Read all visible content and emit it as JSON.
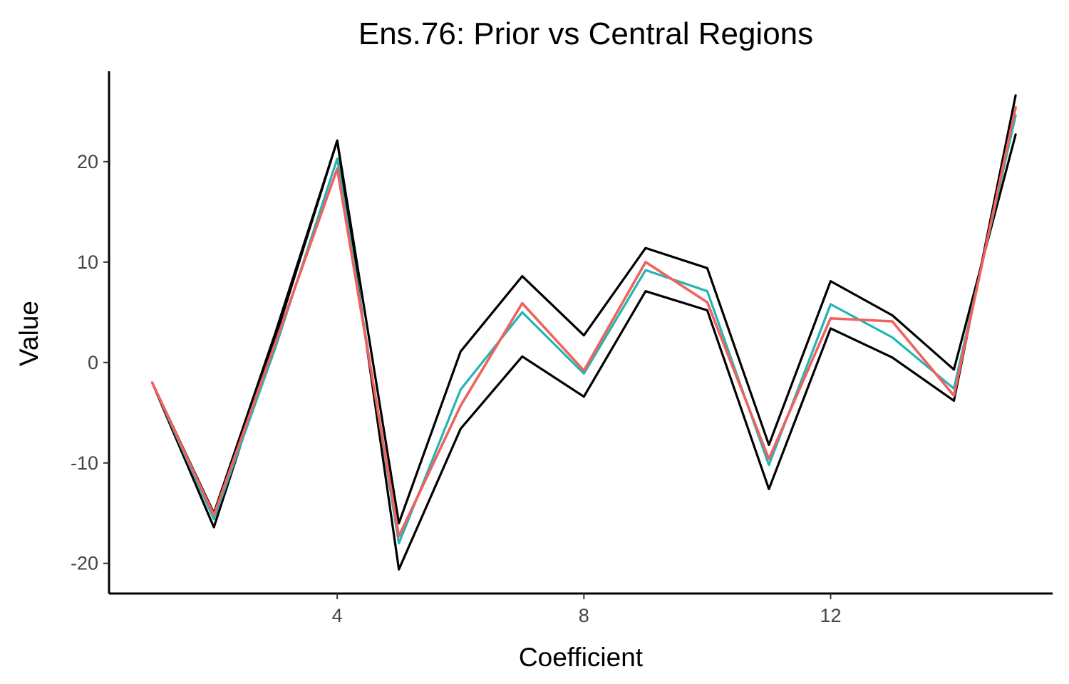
{
  "chart_data": {
    "type": "line",
    "title": "Ens.76: Prior vs Central Regions",
    "xlabel": "Coefficient",
    "ylabel": "Value",
    "x": [
      1,
      2,
      3,
      4,
      5,
      6,
      7,
      8,
      9,
      10,
      11,
      12,
      13,
      14,
      15
    ],
    "xlim": [
      0.3,
      15.6
    ],
    "ylim": [
      -23,
      29
    ],
    "xticks": [
      4,
      8,
      12
    ],
    "yticks": [
      -20,
      -10,
      0,
      10,
      20
    ],
    "grid": false,
    "legend": "none",
    "series": [
      {
        "color": "#000000",
        "values": [
          -2.0,
          -16.4,
          2.5,
          22.1,
          -20.6,
          -6.6,
          0.6,
          -3.4,
          7.1,
          5.2,
          -12.6,
          3.4,
          0.5,
          -3.8,
          26.6
        ]
      },
      {
        "color": "#000000",
        "values": [
          -2.0,
          -15.0,
          3.0,
          22.1,
          -16.0,
          1.1,
          8.6,
          2.7,
          11.4,
          9.4,
          -8.2,
          8.1,
          4.7,
          -0.7,
          22.7
        ]
      },
      {
        "color": "#22B5B5",
        "values": [
          -2.0,
          -15.6,
          1.5,
          20.3,
          -18.0,
          -2.7,
          5.0,
          -1.1,
          9.2,
          7.1,
          -10.2,
          5.8,
          2.5,
          -2.6,
          24.6
        ]
      },
      {
        "color": "#F0625E",
        "values": [
          -2.0,
          -15.2,
          2.0,
          19.3,
          -17.3,
          -4.3,
          5.9,
          -0.8,
          10.0,
          6.0,
          -9.6,
          4.4,
          4.1,
          -3.3,
          25.4
        ]
      }
    ]
  }
}
